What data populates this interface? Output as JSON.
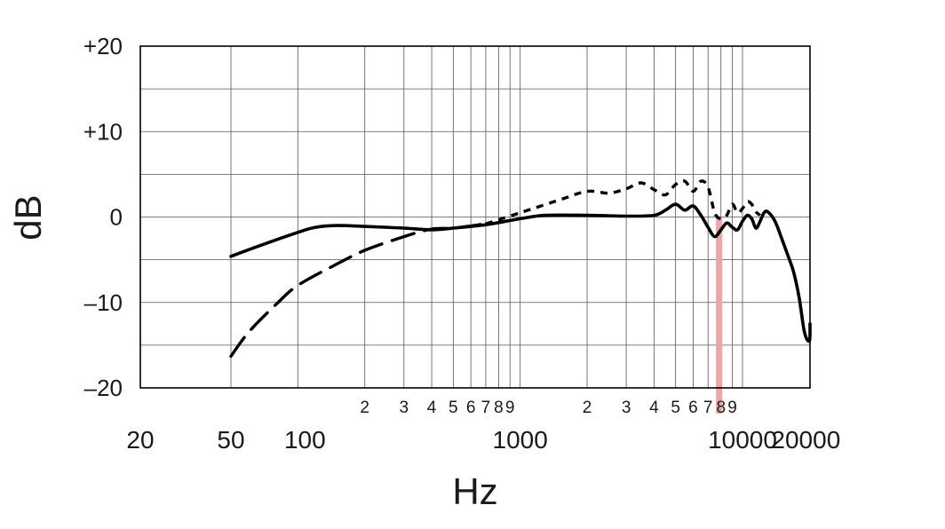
{
  "chart_data": {
    "type": "line",
    "xscale": "log",
    "xlim": [
      20,
      20000
    ],
    "ylim": [
      -20,
      20
    ],
    "grid": true,
    "xlabel": "Hz",
    "ylabel": "dB",
    "y_tick_labels": [
      {
        "value": 20,
        "label": "+20"
      },
      {
        "value": 10,
        "label": "+10"
      },
      {
        "value": 0,
        "label": "0"
      },
      {
        "value": -10,
        "label": "–10"
      },
      {
        "value": -20,
        "label": "–20"
      }
    ],
    "x_major_labels": [
      {
        "value": 20,
        "label": "20"
      },
      {
        "value": 50,
        "label": "50"
      },
      {
        "value": 100,
        "label": "100"
      },
      {
        "value": 1000,
        "label": "1000"
      },
      {
        "value": 10000,
        "label": "10000"
      },
      {
        "value": 20000,
        "label": "20000"
      }
    ],
    "x_minor_labels": [
      {
        "value": 200,
        "label": "2"
      },
      {
        "value": 300,
        "label": "3"
      },
      {
        "value": 400,
        "label": "4"
      },
      {
        "value": 500,
        "label": "5"
      },
      {
        "value": 600,
        "label": "6"
      },
      {
        "value": 700,
        "label": "7"
      },
      {
        "value": 800,
        "label": "8"
      },
      {
        "value": 900,
        "label": "9"
      },
      {
        "value": 2000,
        "label": "2"
      },
      {
        "value": 3000,
        "label": "3"
      },
      {
        "value": 4000,
        "label": "4"
      },
      {
        "value": 5000,
        "label": "5"
      },
      {
        "value": 6000,
        "label": "6"
      },
      {
        "value": 7000,
        "label": "7"
      },
      {
        "value": 8000,
        "label": "8"
      },
      {
        "value": 9000,
        "label": "9"
      }
    ],
    "vertical_gridlines": [
      50,
      100,
      200,
      300,
      400,
      500,
      600,
      700,
      800,
      900,
      1000,
      2000,
      3000,
      4000,
      5000,
      6000,
      7000,
      8000,
      9000,
      10000
    ],
    "highlight_band": {
      "x_from": 7600,
      "x_to": 8100,
      "y_from": 0,
      "y_to": -23,
      "color": "#f2a3a3"
    },
    "series": [
      {
        "style": "solid",
        "color": "#000000",
        "points": [
          [
            50,
            -4.6
          ],
          [
            70,
            -3.2
          ],
          [
            100,
            -1.8
          ],
          [
            120,
            -1.2
          ],
          [
            150,
            -1.0
          ],
          [
            200,
            -1.1
          ],
          [
            300,
            -1.3
          ],
          [
            400,
            -1.5
          ],
          [
            500,
            -1.3
          ],
          [
            700,
            -0.9
          ],
          [
            1000,
            -0.2
          ],
          [
            1300,
            0.2
          ],
          [
            2000,
            0.2
          ],
          [
            3000,
            0.1
          ],
          [
            4000,
            0.2
          ],
          [
            4500,
            0.8
          ],
          [
            5000,
            1.5
          ],
          [
            5500,
            0.8
          ],
          [
            6000,
            1.3
          ],
          [
            6500,
            0.2
          ],
          [
            7000,
            -1.2
          ],
          [
            7500,
            -2.3
          ],
          [
            8000,
            -1.5
          ],
          [
            8500,
            -0.7
          ],
          [
            9000,
            -1.2
          ],
          [
            9500,
            -1.5
          ],
          [
            10000,
            -0.5
          ],
          [
            10500,
            0.2
          ],
          [
            11000,
            -0.2
          ],
          [
            11500,
            -1.3
          ],
          [
            12000,
            -0.5
          ],
          [
            12500,
            0.5
          ],
          [
            13000,
            0.6
          ],
          [
            14000,
            -0.5
          ],
          [
            15000,
            -2.5
          ],
          [
            16000,
            -4.5
          ],
          [
            17000,
            -6.5
          ],
          [
            18000,
            -9.5
          ],
          [
            19000,
            -13.5
          ],
          [
            20000,
            -14.5
          ],
          [
            22000,
            -12.5
          ]
        ]
      },
      {
        "style": "dashed",
        "color": "#000000",
        "points": [
          [
            50,
            -16.3
          ],
          [
            60,
            -13.5
          ],
          [
            80,
            -10.2
          ],
          [
            100,
            -8.0
          ],
          [
            150,
            -5.5
          ],
          [
            200,
            -3.9
          ],
          [
            300,
            -2.3
          ],
          [
            400,
            -1.4
          ],
          [
            500,
            -1.3
          ],
          [
            700,
            -0.8
          ]
        ]
      },
      {
        "style": "dotted",
        "color": "#000000",
        "points": [
          [
            700,
            -0.8
          ],
          [
            1000,
            0.5
          ],
          [
            1500,
            2.0
          ],
          [
            2000,
            3.0
          ],
          [
            2500,
            2.8
          ],
          [
            3000,
            3.3
          ],
          [
            3500,
            4.0
          ],
          [
            4000,
            3.2
          ],
          [
            4500,
            2.6
          ],
          [
            5000,
            3.8
          ],
          [
            5500,
            4.2
          ],
          [
            6000,
            3.0
          ],
          [
            6500,
            4.2
          ],
          [
            7000,
            3.5
          ],
          [
            7500,
            0.5
          ],
          [
            8000,
            -0.2
          ],
          [
            8500,
            0.2
          ],
          [
            9000,
            1.5
          ],
          [
            9500,
            0.5
          ],
          [
            10000,
            1.0
          ],
          [
            10500,
            1.8
          ],
          [
            11000,
            1.5
          ],
          [
            11500,
            0.6
          ],
          [
            12000,
            0.2
          ]
        ]
      }
    ]
  }
}
